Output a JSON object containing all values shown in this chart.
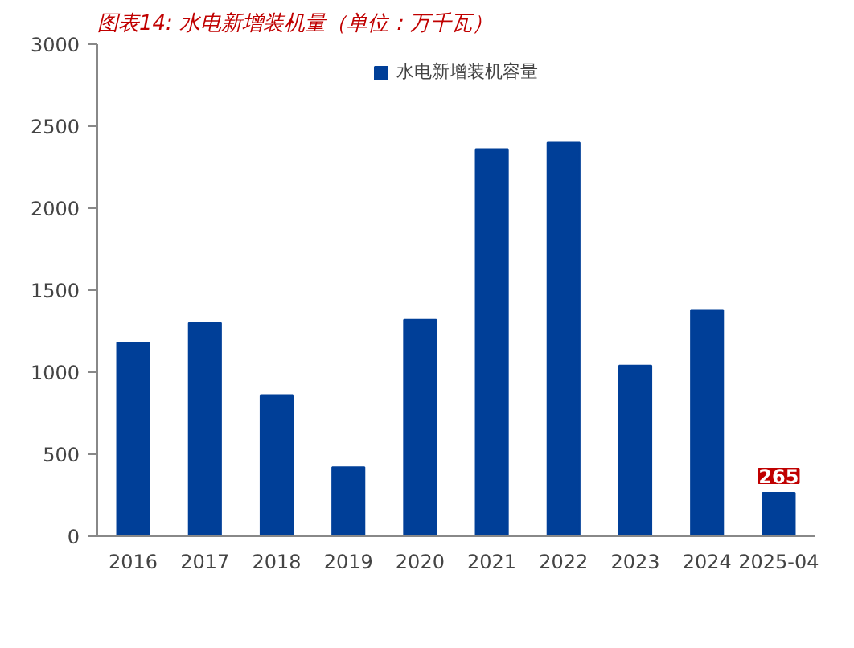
{
  "chart_data": {
    "type": "bar",
    "title": "图表14: 水电新增装机量（单位：万千瓦）",
    "categories": [
      "2016",
      "2017",
      "2018",
      "2019",
      "2020",
      "2021",
      "2022",
      "2023",
      "2024",
      "2025-04"
    ],
    "series": [
      {
        "name": "水电新增装机容量",
        "color": "#003f98",
        "values": [
          1180,
          1300,
          860,
          420,
          1320,
          2360,
          2400,
          1040,
          1380,
          265
        ],
        "value_labels": [
          null,
          null,
          null,
          null,
          null,
          null,
          null,
          null,
          null,
          "265"
        ]
      }
    ],
    "ylim": [
      0,
      3000
    ],
    "yticks": [
      0,
      500,
      1000,
      1500,
      2000,
      2500,
      3000
    ],
    "grid": false,
    "legend": "top"
  }
}
